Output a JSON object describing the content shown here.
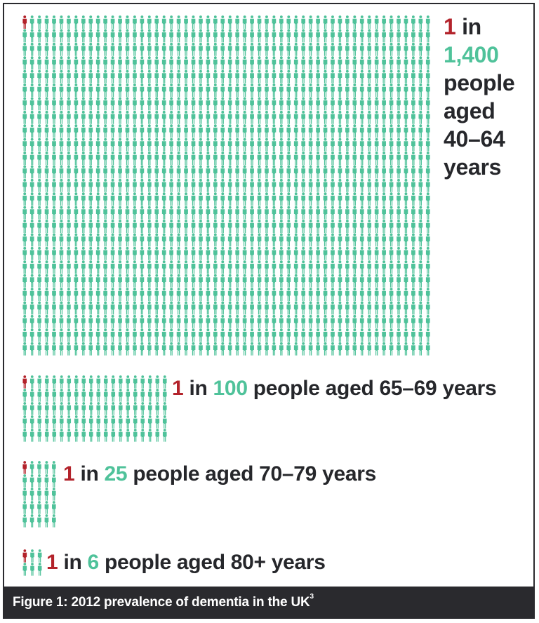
{
  "colors": {
    "highlight": "#b3232b",
    "population": "#4fc29a",
    "text": "#26272b",
    "caption_bg": "#2a2a2e"
  },
  "icon": "person-icon",
  "chart_data": {
    "type": "pictogram",
    "series": [
      {
        "numerator": "1",
        "in_word": "in",
        "denominator": "1,400",
        "rest": "people aged 40–64 years",
        "rest_lines": [
          "people",
          "aged",
          "40–64",
          "years"
        ],
        "affected": 1,
        "total": 1400
      },
      {
        "numerator": "1",
        "in_word": "in",
        "denominator": "100",
        "rest": "people aged 65–69 years",
        "affected": 1,
        "total": 100
      },
      {
        "numerator": "1",
        "in_word": "in",
        "denominator": "25",
        "rest": "people aged 70–79 years",
        "affected": 1,
        "total": 25
      },
      {
        "numerator": "1",
        "in_word": "in",
        "denominator": "6",
        "rest": "people aged 80+ years",
        "affected": 1,
        "total": 6
      }
    ]
  },
  "caption": {
    "text": "Figure 1: 2012 prevalence of dementia in the UK",
    "footnote": "3"
  }
}
